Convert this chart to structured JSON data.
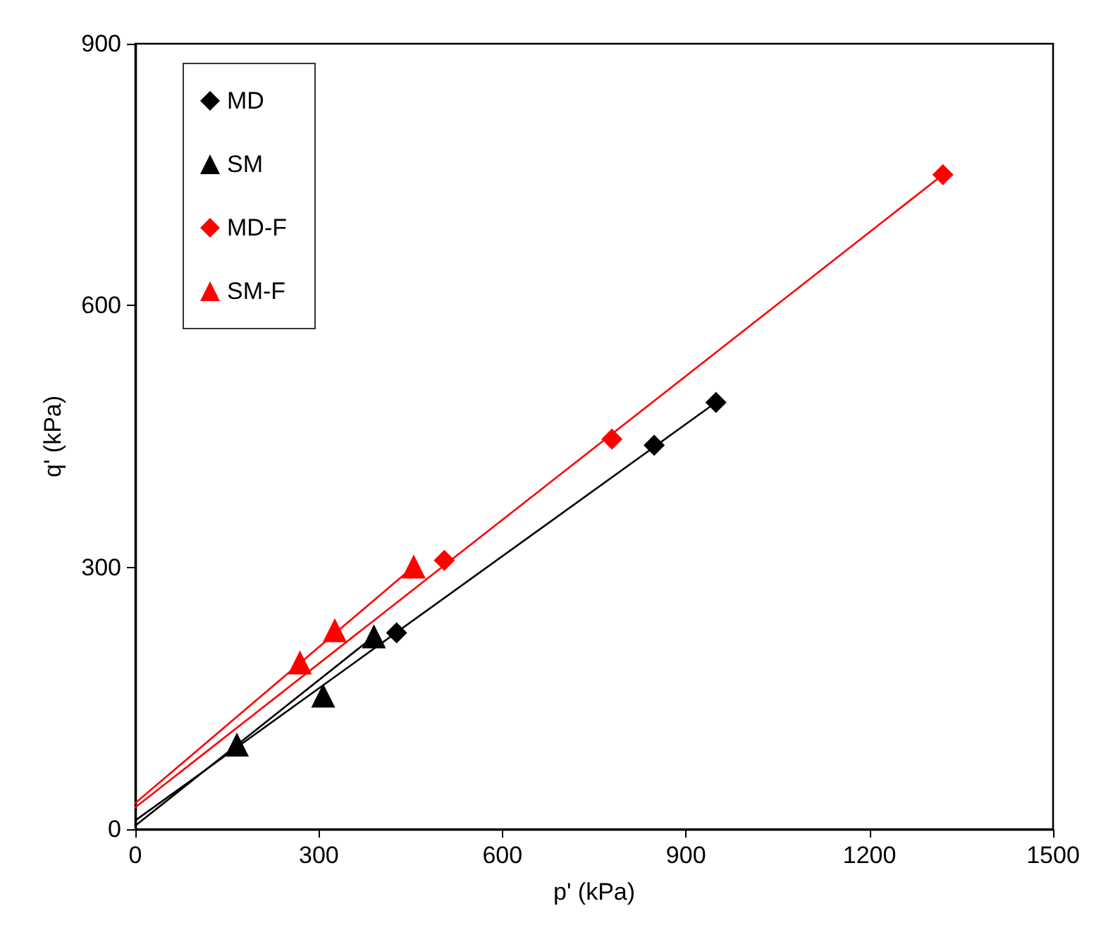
{
  "chart_data": {
    "type": "scatter",
    "xlabel": "p' (kPa)",
    "ylabel": "q' (kPa)",
    "xlim": [
      0,
      1500
    ],
    "xticks": [
      0,
      300,
      600,
      900,
      1200,
      1500
    ],
    "ylim": [
      0,
      900
    ],
    "yticks": [
      0,
      300,
      600,
      900
    ],
    "grid": false,
    "legend": "top left",
    "series": [
      {
        "name": "MD",
        "color": "#000000",
        "marker": "diamond",
        "x": [
          427,
          848,
          949
        ],
        "values": [
          225,
          440,
          489
        ]
      },
      {
        "name": "SM",
        "color": "#000000",
        "marker": "triangle",
        "x": [
          166,
          307,
          390
        ],
        "values": [
          97,
          153,
          221
        ]
      },
      {
        "name": "MD-F",
        "color": "#ff0000",
        "marker": "diamond",
        "x": [
          505,
          779,
          1320
        ],
        "values": [
          308,
          447,
          750
        ]
      },
      {
        "name": "SM-F",
        "color": "#ff0000",
        "marker": "triangle",
        "x": [
          269,
          326,
          455
        ],
        "values": [
          191,
          228,
          301
        ]
      },
      {
        "type": "line",
        "color": "#000000",
        "marker": "none",
        "x": [
          0,
          949
        ],
        "values": [
          10,
          489
        ]
      },
      {
        "type": "line",
        "color": "#000000",
        "marker": "none",
        "x": [
          0,
          390
        ],
        "values": [
          4,
          221
        ]
      },
      {
        "type": "line",
        "color": "#ff0000",
        "marker": "none",
        "x": [
          0,
          1320
        ],
        "values": [
          25,
          750
        ]
      },
      {
        "type": "line",
        "color": "#ff0000",
        "marker": "none",
        "x": [
          0,
          455
        ],
        "values": [
          30,
          301
        ]
      }
    ]
  }
}
